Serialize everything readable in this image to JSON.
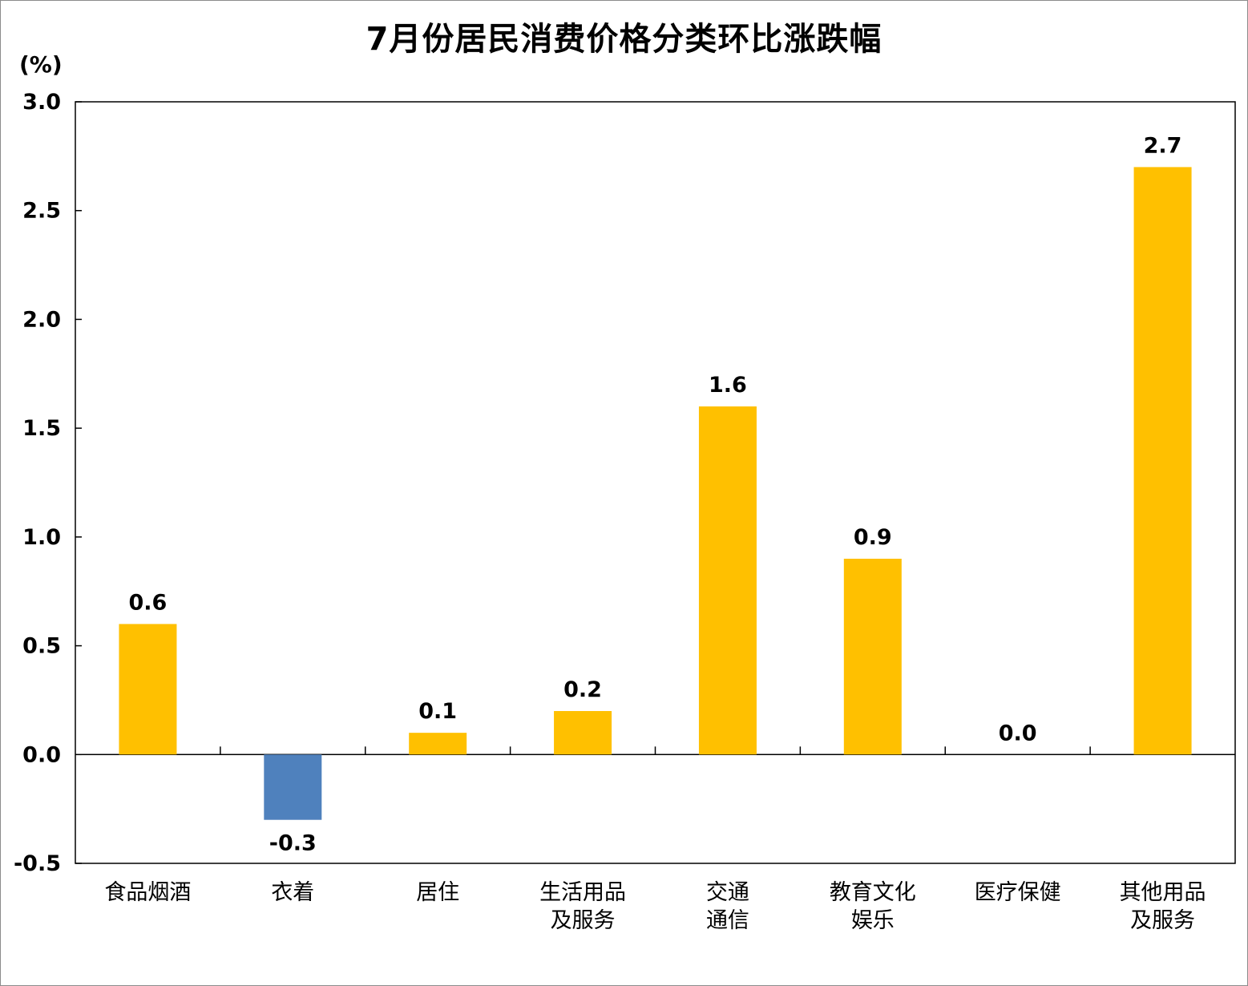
{
  "header": {
    "title": "7月份居民消费价格分类环比涨跌幅",
    "unit": "(%)"
  },
  "colors": {
    "positive": "#FFC000",
    "negative": "#4F81BD"
  },
  "chart_data": {
    "type": "bar",
    "title": "7月份居民消费价格分类环比涨跌幅",
    "ylabel": "(%)",
    "xlabel": "",
    "ylim": [
      -0.5,
      3.0
    ],
    "yticks": [
      -0.5,
      0.0,
      0.5,
      1.0,
      1.5,
      2.0,
      2.5,
      3.0
    ],
    "ytick_labels": [
      "-0.5",
      "0.0",
      "0.5",
      "1.0",
      "1.5",
      "2.0",
      "2.5",
      "3.0"
    ],
    "categories": [
      [
        "食品烟酒"
      ],
      [
        "衣着"
      ],
      [
        "居住"
      ],
      [
        "生活用品",
        "及服务"
      ],
      [
        "交通",
        "通信"
      ],
      [
        "教育文化",
        "娱乐"
      ],
      [
        "医疗保健"
      ],
      [
        "其他用品",
        "及服务"
      ]
    ],
    "values": [
      0.6,
      -0.3,
      0.1,
      0.2,
      1.6,
      0.9,
      0.0,
      2.7
    ],
    "value_labels": [
      "0.6",
      "-0.3",
      "0.1",
      "0.2",
      "1.6",
      "0.9",
      "0.0",
      "2.7"
    ],
    "grid": false,
    "legend": "none"
  }
}
